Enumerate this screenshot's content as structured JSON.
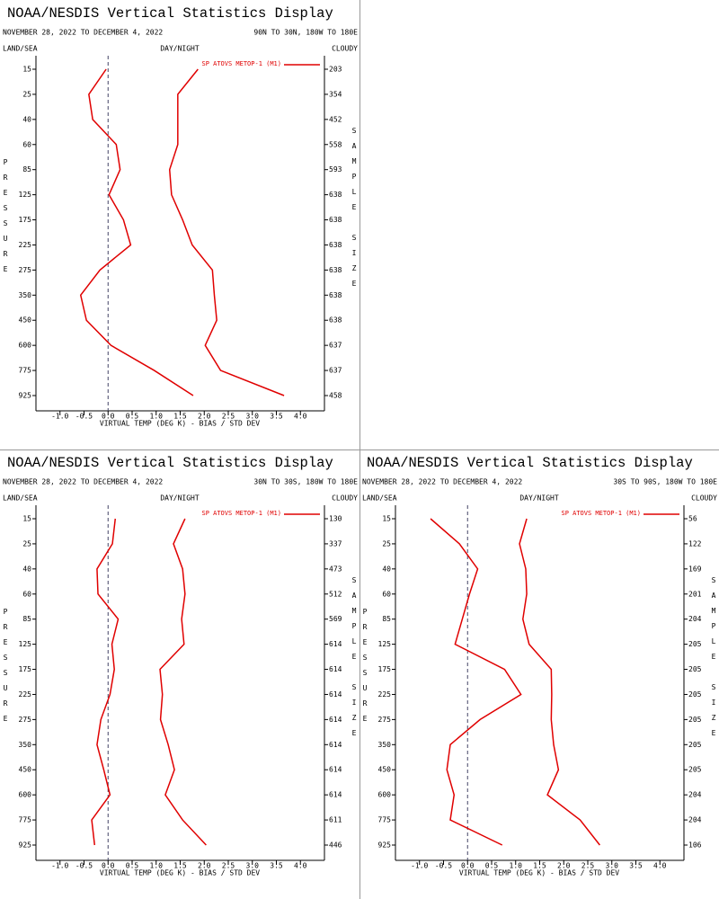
{
  "chart_data": [
    {
      "type": "line",
      "title": "NOAA/NESDIS Vertical Statistics Display",
      "subtitle": "NOVEMBER 28, 2022 TO DECEMBER 4, 2022",
      "region": "90N TO 30N, 180W TO 180E",
      "land_sea": "LAND/SEA",
      "day_night": "DAY/NIGHT",
      "cloudy": "CLOUDY",
      "y_label": "PRESSURE",
      "y2_label": "SAMPLE SIZE",
      "x_label": "VIRTUAL TEMP (DEG K) - BIAS / STD DEV",
      "categories": [
        15,
        25,
        40,
        60,
        85,
        125,
        175,
        225,
        275,
        350,
        450,
        600,
        775,
        925
      ],
      "series": [
        {
          "name": "SP ATOVS METOP-1 (M1)",
          "color": "#e00000",
          "values": [
            -0.04,
            -0.4,
            -0.32,
            0.17,
            0.25,
            0.02,
            0.32,
            0.47,
            -0.17,
            -0.57,
            -0.45,
            0.06,
            0.96,
            1.77
          ],
          "std_dev": [
            1.87,
            1.45,
            1.45,
            1.45,
            1.28,
            1.32,
            1.55,
            1.75,
            2.17,
            2.21,
            2.26,
            2.02,
            2.34,
            3.66
          ]
        }
      ],
      "sample_size": [
        203,
        354,
        452,
        558,
        593,
        638,
        638,
        638,
        638,
        638,
        638,
        637,
        637,
        458
      ],
      "xlim": [
        -1.5,
        4.5
      ],
      "xticks": [
        {
          "value": -1,
          "label": "-1.0"
        },
        {
          "value": -0.5,
          "label": "-0.5"
        },
        {
          "value": 0,
          "label": "0.0"
        },
        {
          "value": 0.5,
          "label": "0.5"
        },
        {
          "value": 1,
          "label": "1.0"
        },
        {
          "value": 1.5,
          "label": "1.5"
        },
        {
          "value": 2,
          "label": "2.0"
        },
        {
          "value": 2.5,
          "label": "2.5"
        },
        {
          "value": 3,
          "label": "3.0"
        },
        {
          "value": 3.5,
          "label": "3.5"
        },
        {
          "value": 4,
          "label": "4.0"
        }
      ],
      "zero_line": true
    },
    {
      "type": "line",
      "title": "NOAA/NESDIS Vertical Statistics Display",
      "subtitle": "NOVEMBER 28, 2022 TO DECEMBER 4, 2022",
      "region": "30N TO 30S, 180W TO 180E",
      "land_sea": "LAND/SEA",
      "day_night": "DAY/NIGHT",
      "cloudy": "CLOUDY",
      "y_label": "PRESSURE",
      "y2_label": "SAMPLE SIZE",
      "x_label": "VIRTUAL TEMP (DEG K) - BIAS / STD DEV",
      "categories": [
        15,
        25,
        40,
        60,
        85,
        125,
        175,
        225,
        275,
        350,
        450,
        600,
        775,
        925
      ],
      "series": [
        {
          "name": "SP ATOVS METOP-1 (M1)",
          "color": "#e00000",
          "values": [
            0.15,
            0.09,
            -0.23,
            -0.21,
            0.21,
            0.08,
            0.13,
            0.04,
            -0.15,
            -0.23,
            -0.09,
            0.04,
            -0.34,
            -0.28
          ],
          "std_dev": [
            1.6,
            1.36,
            1.55,
            1.6,
            1.53,
            1.58,
            1.08,
            1.13,
            1.09,
            1.25,
            1.38,
            1.19,
            1.55,
            2.04
          ]
        }
      ],
      "sample_size": [
        130,
        337,
        473,
        512,
        569,
        614,
        614,
        614,
        614,
        614,
        614,
        614,
        611,
        446
      ],
      "xlim": [
        -1.5,
        4.5
      ],
      "xticks": [
        {
          "value": -1,
          "label": "-1.0"
        },
        {
          "value": -0.5,
          "label": "-0.5"
        },
        {
          "value": 0,
          "label": "0.0"
        },
        {
          "value": 0.5,
          "label": "0.5"
        },
        {
          "value": 1,
          "label": "1.0"
        },
        {
          "value": 1.5,
          "label": "1.5"
        },
        {
          "value": 2,
          "label": "2.0"
        },
        {
          "value": 2.5,
          "label": "2.5"
        },
        {
          "value": 3,
          "label": "3.0"
        },
        {
          "value": 3.5,
          "label": "3.5"
        },
        {
          "value": 4,
          "label": "4.0"
        }
      ],
      "zero_line": true
    },
    {
      "type": "line",
      "title": "NOAA/NESDIS Vertical Statistics Display",
      "subtitle": "NOVEMBER 28, 2022 TO DECEMBER 4, 2022",
      "region": "30S TO 90S, 180W TO 180E",
      "land_sea": "LAND/SEA",
      "day_night": "DAY/NIGHT",
      "cloudy": "CLOUDY",
      "y_label": "PRESSURE",
      "y2_label": "SAMPLE SIZE",
      "x_label": "VIRTUAL TEMP (DEG K) - BIAS / STD DEV",
      "categories": [
        15,
        25,
        40,
        60,
        85,
        125,
        175,
        225,
        275,
        350,
        450,
        600,
        775,
        925
      ],
      "series": [
        {
          "name": "SP ATOVS METOP-1 (M1)",
          "color": "#e00000",
          "values": [
            -0.77,
            -0.17,
            0.21,
            0.04,
            -0.11,
            -0.26,
            0.77,
            1.11,
            0.26,
            -0.36,
            -0.43,
            -0.28,
            -0.36,
            0.72
          ],
          "std_dev": [
            1.23,
            1.08,
            1.21,
            1.23,
            1.15,
            1.28,
            1.74,
            1.75,
            1.74,
            1.79,
            1.89,
            1.66,
            2.34,
            2.75
          ]
        }
      ],
      "sample_size": [
        56,
        122,
        169,
        201,
        204,
        205,
        205,
        205,
        205,
        205,
        205,
        204,
        204,
        106
      ],
      "xlim": [
        -1.5,
        4.5
      ],
      "xticks": [
        {
          "value": -1,
          "label": "-1.0"
        },
        {
          "value": -0.5,
          "label": "-0.5"
        },
        {
          "value": 0,
          "label": "0.0"
        },
        {
          "value": 0.5,
          "label": "0.5"
        },
        {
          "value": 1,
          "label": "1.0"
        },
        {
          "value": 1.5,
          "label": "1.5"
        },
        {
          "value": 2,
          "label": "2.0"
        },
        {
          "value": 2.5,
          "label": "2.5"
        },
        {
          "value": 3,
          "label": "3.0"
        },
        {
          "value": 3.5,
          "label": "3.5"
        },
        {
          "value": 4,
          "label": "4.0"
        }
      ],
      "zero_line": true
    }
  ]
}
